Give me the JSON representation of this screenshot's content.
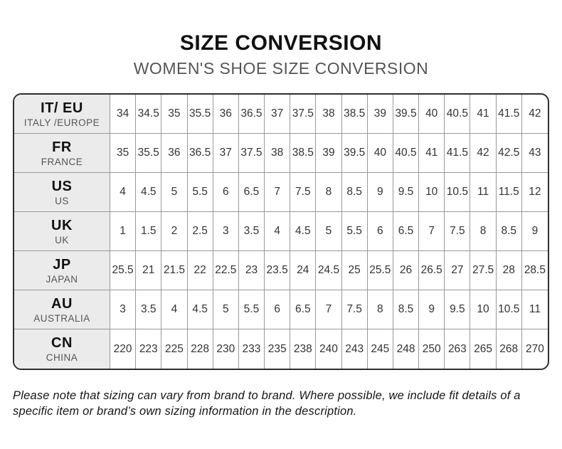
{
  "header": {
    "title": "SIZE CONVERSION",
    "subtitle": "WOMEN'S SHOE SIZE CONVERSION"
  },
  "table": {
    "rows": [
      {
        "code": "IT/ EU",
        "region": "ITALY /EUROPE",
        "values": [
          "34",
          "34.5",
          "35",
          "35.5",
          "36",
          "36.5",
          "37",
          "37.5",
          "38",
          "38.5",
          "39",
          "39.5",
          "40",
          "40.5",
          "41",
          "41.5",
          "42"
        ]
      },
      {
        "code": "FR",
        "region": "FRANCE",
        "values": [
          "35",
          "35.5",
          "36",
          "36.5",
          "37",
          "37.5",
          "38",
          "38.5",
          "39",
          "39.5",
          "40",
          "40.5",
          "41",
          "41.5",
          "42",
          "42.5",
          "43"
        ]
      },
      {
        "code": "US",
        "region": "US",
        "values": [
          "4",
          "4.5",
          "5",
          "5.5",
          "6",
          "6.5",
          "7",
          "7.5",
          "8",
          "8.5",
          "9",
          "9.5",
          "10",
          "10.5",
          "11",
          "11.5",
          "12"
        ]
      },
      {
        "code": "UK",
        "region": "UK",
        "values": [
          "1",
          "1.5",
          "2",
          "2.5",
          "3",
          "3.5",
          "4",
          "4.5",
          "5",
          "5.5",
          "6",
          "6.5",
          "7",
          "7.5",
          "8",
          "8.5",
          "9"
        ]
      },
      {
        "code": "JP",
        "region": "JAPAN",
        "values": [
          "25.5",
          "21",
          "21.5",
          "22",
          "22.5",
          "23",
          "23.5",
          "24",
          "24.5",
          "25",
          "25.5",
          "26",
          "26.5",
          "27",
          "27.5",
          "28",
          "28.5"
        ]
      },
      {
        "code": "AU",
        "region": "AUSTRALIA",
        "values": [
          "3",
          "3.5",
          "4",
          "4.5",
          "5",
          "5.5",
          "6",
          "6.5",
          "7",
          "7.5",
          "8",
          "8.5",
          "9",
          "9.5",
          "10",
          "10.5",
          "11"
        ]
      },
      {
        "code": "CN",
        "region": "CHINA",
        "values": [
          "220",
          "223",
          "225",
          "228",
          "230",
          "233",
          "235",
          "238",
          "240",
          "243",
          "245",
          "248",
          "250",
          "263",
          "265",
          "268",
          "270"
        ]
      }
    ]
  },
  "footer": {
    "note": "Please note that sizing can vary from brand to brand. Where possible, we include fit details of a specific item or brand’s own sizing information in the description."
  },
  "colors": {
    "title": "#111111",
    "subtitle": "#555555",
    "outer_border": "#2e2e2e",
    "grid_line": "#999999",
    "label_bg": "#ebebeb",
    "cell_text": "#333333"
  }
}
